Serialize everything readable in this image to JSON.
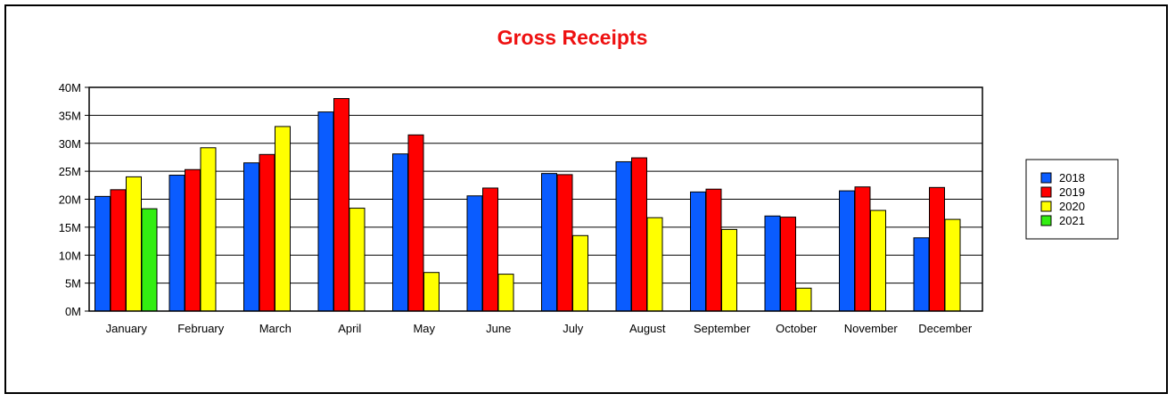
{
  "chart_data": {
    "type": "bar",
    "title": "Gross Receipts",
    "xlabel": "",
    "ylabel": "",
    "ylim": [
      0,
      40
    ],
    "y_ticks": [
      0,
      5,
      10,
      15,
      20,
      25,
      30,
      35,
      40
    ],
    "y_tick_labels": [
      "0M",
      "5M",
      "10M",
      "15M",
      "20M",
      "25M",
      "30M",
      "35M",
      "40M"
    ],
    "grid": true,
    "legend_position": "right",
    "categories": [
      "January",
      "February",
      "March",
      "April",
      "May",
      "June",
      "July",
      "August",
      "September",
      "October",
      "November",
      "December"
    ],
    "series": [
      {
        "name": "2018",
        "color": "#0a5cff",
        "values": [
          20.5,
          24.3,
          26.5,
          35.6,
          28.1,
          20.6,
          24.6,
          26.7,
          21.3,
          17.0,
          21.5,
          13.1
        ]
      },
      {
        "name": "2019",
        "color": "#ff0000",
        "values": [
          21.7,
          25.3,
          28.0,
          38.0,
          31.5,
          22.0,
          24.4,
          27.4,
          21.8,
          16.8,
          22.2,
          22.1
        ]
      },
      {
        "name": "2020",
        "color": "#ffff00",
        "values": [
          24.0,
          29.2,
          33.0,
          18.4,
          6.9,
          6.6,
          13.5,
          16.7,
          14.6,
          4.1,
          18.0,
          16.4
        ]
      },
      {
        "name": "2021",
        "color": "#33ee11",
        "values": [
          18.3,
          null,
          null,
          null,
          null,
          null,
          null,
          null,
          null,
          null,
          null,
          null
        ]
      }
    ],
    "colors": {
      "title": "#ee1111",
      "axis": "#000000",
      "grid": "#000000"
    }
  }
}
